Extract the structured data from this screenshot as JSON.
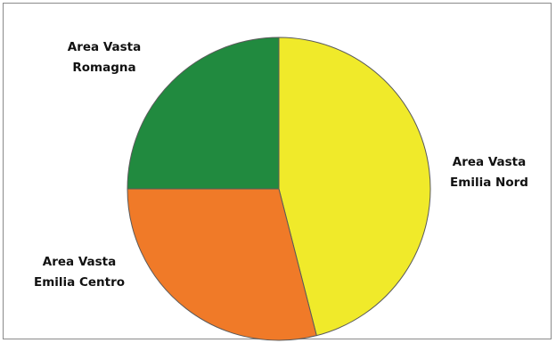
{
  "chart_data": {
    "type": "pie",
    "title": "",
    "start_angle_deg": 0,
    "direction": "clockwise",
    "slices": [
      {
        "label_lines": [
          "Area Vasta",
          "Emilia Nord"
        ],
        "value": 46,
        "color": "#f0ea2a"
      },
      {
        "label_lines": [
          "Area Vasta",
          "Emilia Centro"
        ],
        "value": 29,
        "color": "#f07a28"
      },
      {
        "label_lines": [
          "Area Vasta",
          "Romagna"
        ],
        "value": 25,
        "color": "#218a3f"
      }
    ],
    "legend": "none",
    "slice_border_color": "#5a5a5a"
  }
}
